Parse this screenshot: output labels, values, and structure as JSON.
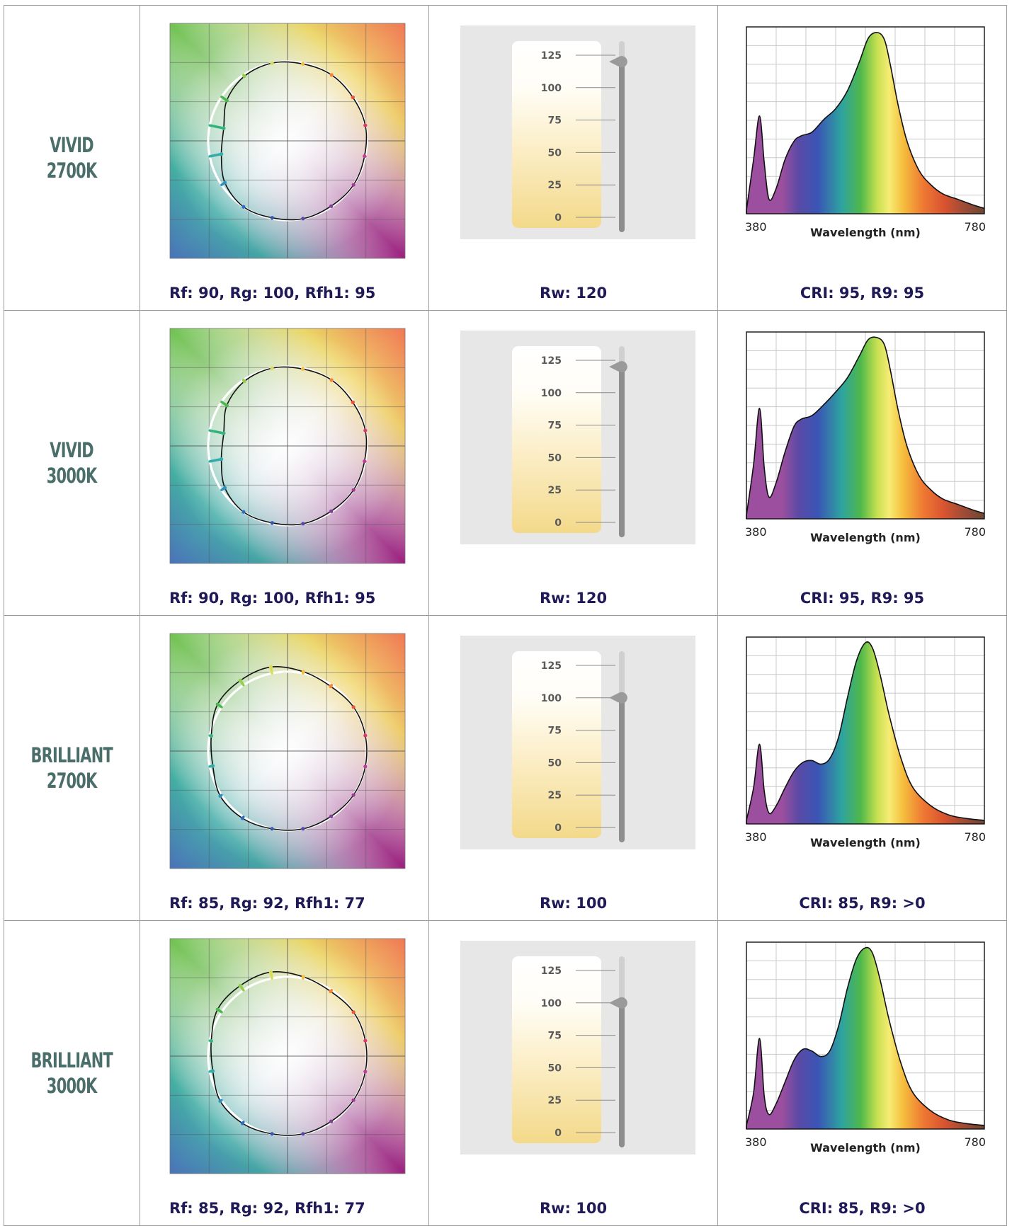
{
  "rows": [
    {
      "name_line1": "VIVID",
      "name_line2": "2700K",
      "fidelity_caption": "Rf: 90, Rg: 100, Rfh1: 95",
      "rw_caption": "Rw: 120",
      "cri_caption": "CRI: 95, R9: 95"
    },
    {
      "name_line1": "VIVID",
      "name_line2": "3000K",
      "fidelity_caption": "Rf: 90, Rg: 100, Rfh1: 95",
      "rw_caption": "Rw: 120",
      "cri_caption": "CRI: 95, R9: 95"
    },
    {
      "name_line1": "BRILLIANT",
      "name_line2": "2700K",
      "fidelity_caption": "Rf: 85, Rg: 92, Rfh1: 77",
      "rw_caption": "Rw: 100",
      "cri_caption": "CRI: 85, R9: >0"
    },
    {
      "name_line1": "BRILLIANT",
      "name_line2": "3000K",
      "fidelity_caption": "Rf: 85, Rg: 92, Rfh1: 77",
      "rw_caption": "Rw: 100",
      "cri_caption": "CRI: 85, R9: >0"
    }
  ],
  "chart_data": [
    {
      "type": "color_vector_graphic",
      "row": 0,
      "radius_scale": [
        1.0,
        0.99,
        1.0,
        0.99,
        1.0,
        0.98,
        0.92,
        0.82,
        0.85,
        0.95,
        1.0,
        0.99,
        1.0,
        0.99,
        1.0,
        0.99
      ]
    },
    {
      "type": "gauge",
      "row": 0,
      "ticks": [
        0,
        25,
        50,
        75,
        100,
        125
      ],
      "value": 120,
      "ylim": [
        0,
        125
      ]
    },
    {
      "type": "area",
      "row": 0,
      "xlabel": "Wavelength (nm)",
      "xmin_label": "380",
      "xmax_label": "780",
      "xlim": [
        380,
        780
      ],
      "x": [
        380,
        392,
        402,
        410,
        418,
        430,
        445,
        460,
        472,
        490,
        510,
        530,
        550,
        570,
        585,
        600,
        612,
        622,
        635,
        650,
        670,
        690,
        710,
        735,
        760,
        780
      ],
      "y": [
        0.02,
        0.3,
        0.54,
        0.28,
        0.08,
        0.14,
        0.3,
        0.4,
        0.43,
        0.45,
        0.52,
        0.58,
        0.68,
        0.84,
        0.97,
        1.0,
        0.96,
        0.82,
        0.6,
        0.4,
        0.24,
        0.16,
        0.11,
        0.08,
        0.05,
        0.03
      ]
    },
    {
      "type": "color_vector_graphic",
      "row": 1,
      "radius_scale": [
        1.0,
        0.99,
        1.0,
        0.99,
        1.0,
        0.98,
        0.92,
        0.82,
        0.85,
        0.95,
        1.0,
        0.99,
        1.0,
        0.99,
        1.0,
        0.99
      ]
    },
    {
      "type": "gauge",
      "row": 1,
      "ticks": [
        0,
        25,
        50,
        75,
        100,
        125
      ],
      "value": 120,
      "ylim": [
        0,
        125
      ]
    },
    {
      "type": "area",
      "row": 1,
      "xlabel": "Wavelength (nm)",
      "xmin_label": "380",
      "xmax_label": "780",
      "xlim": [
        380,
        780
      ],
      "x": [
        380,
        392,
        402,
        410,
        418,
        430,
        445,
        460,
        472,
        490,
        510,
        530,
        550,
        570,
        585,
        600,
        612,
        622,
        635,
        650,
        670,
        690,
        710,
        735,
        760,
        780
      ],
      "y": [
        0.02,
        0.3,
        0.61,
        0.28,
        0.12,
        0.2,
        0.37,
        0.51,
        0.55,
        0.57,
        0.63,
        0.7,
        0.78,
        0.9,
        0.99,
        1.0,
        0.96,
        0.82,
        0.6,
        0.4,
        0.24,
        0.16,
        0.11,
        0.08,
        0.05,
        0.03
      ]
    },
    {
      "type": "color_vector_graphic",
      "row": 2,
      "radius_scale": [
        1.0,
        1.0,
        0.98,
        1.02,
        1.08,
        1.07,
        1.06,
        0.98,
        0.96,
        1.02,
        1.02,
        1.0,
        1.0,
        0.99,
        1.0,
        1.0
      ]
    },
    {
      "type": "gauge",
      "row": 2,
      "ticks": [
        0,
        25,
        50,
        75,
        100,
        125
      ],
      "value": 100,
      "ylim": [
        0,
        125
      ]
    },
    {
      "type": "area",
      "row": 2,
      "xlabel": "Wavelength (nm)",
      "xmin_label": "380",
      "xmax_label": "780",
      "xlim": [
        380,
        780
      ],
      "x": [
        380,
        392,
        402,
        410,
        418,
        430,
        445,
        460,
        475,
        490,
        505,
        520,
        535,
        550,
        565,
        580,
        592,
        605,
        620,
        640,
        660,
        690,
        720,
        750,
        780
      ],
      "y": [
        0.02,
        0.2,
        0.44,
        0.18,
        0.06,
        0.1,
        0.2,
        0.29,
        0.34,
        0.35,
        0.33,
        0.36,
        0.48,
        0.7,
        0.9,
        1.0,
        0.97,
        0.82,
        0.6,
        0.36,
        0.2,
        0.1,
        0.05,
        0.03,
        0.02
      ]
    },
    {
      "type": "color_vector_graphic",
      "row": 3,
      "radius_scale": [
        1.0,
        1.0,
        0.98,
        1.02,
        1.08,
        1.07,
        1.06,
        0.98,
        0.96,
        1.02,
        1.02,
        1.0,
        1.0,
        0.99,
        1.0,
        1.0
      ]
    },
    {
      "type": "gauge",
      "row": 3,
      "ticks": [
        0,
        25,
        50,
        75,
        100,
        125
      ],
      "value": 100,
      "ylim": [
        0,
        125
      ]
    },
    {
      "type": "area",
      "row": 3,
      "xlabel": "Wavelength (nm)",
      "xmin_label": "380",
      "xmax_label": "780",
      "xlim": [
        380,
        780
      ],
      "x": [
        380,
        392,
        402,
        410,
        418,
        430,
        445,
        460,
        475,
        490,
        505,
        520,
        535,
        550,
        565,
        580,
        592,
        605,
        620,
        640,
        660,
        690,
        720,
        750,
        780
      ],
      "y": [
        0.02,
        0.2,
        0.5,
        0.18,
        0.08,
        0.14,
        0.26,
        0.38,
        0.44,
        0.43,
        0.4,
        0.43,
        0.57,
        0.78,
        0.94,
        1.0,
        0.97,
        0.82,
        0.6,
        0.36,
        0.2,
        0.1,
        0.05,
        0.03,
        0.02
      ]
    }
  ]
}
